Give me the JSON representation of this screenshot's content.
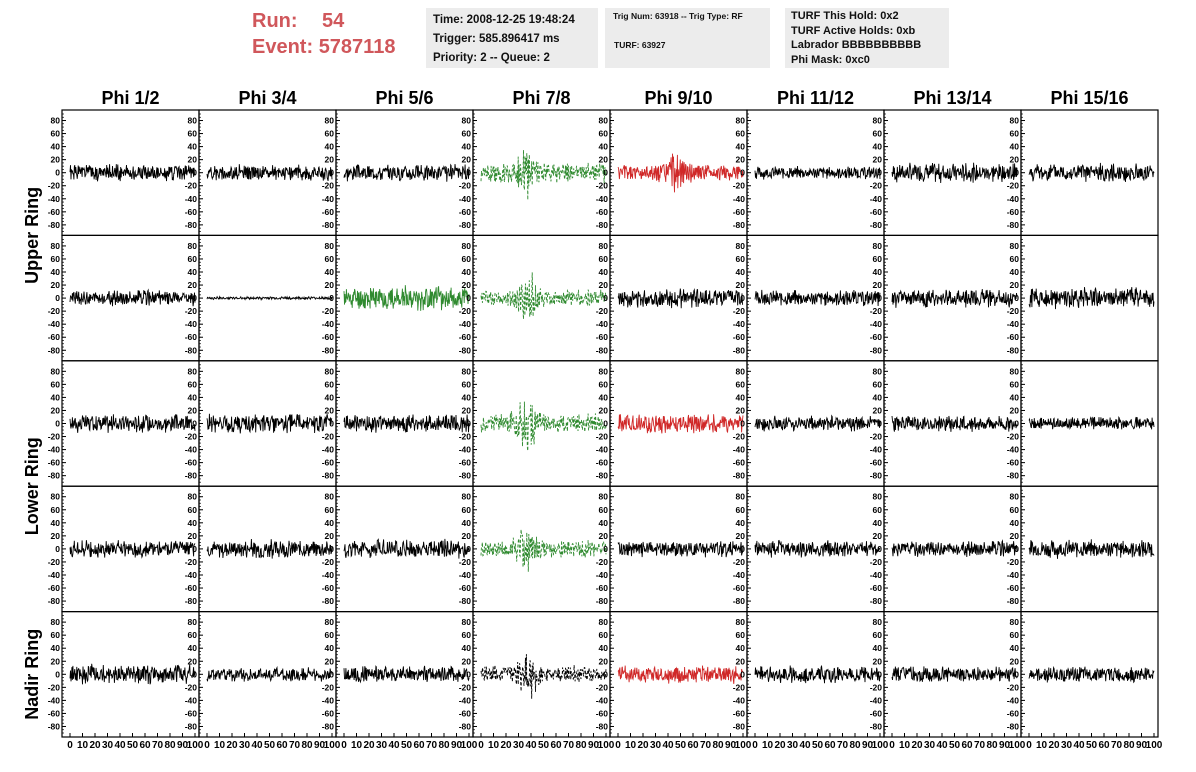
{
  "header": {
    "run_label": "Run:",
    "run_value": "54",
    "event_label": "Event:",
    "event_value": "5787118",
    "run_color": "#d0575b"
  },
  "info": {
    "time": "Time: 2008-12-25 19:48:24",
    "trigger": "Trigger: 585.896417 ms",
    "priority": "Priority: 2 -- Queue: 2",
    "trig_num": "Trig Num: 63918 -- Trig Type: RF",
    "turf": "TURF: 63927",
    "turf_hold": "TURF This Hold: 0x2",
    "turf_active": "TURF Active Holds: 0xb",
    "labrador": "Labrador BBBBBBBBBB",
    "phi_mask": "Phi Mask: 0xc0"
  },
  "columns": [
    "Phi 1/2",
    "Phi 3/4",
    "Phi 5/6",
    "Phi 7/8",
    "Phi 9/10",
    "Phi 11/12",
    "Phi 13/14",
    "Phi 15/16"
  ],
  "ring_groups": [
    {
      "label": "Upper Ring",
      "rows": [
        0,
        1
      ]
    },
    {
      "label": "Lower Ring",
      "rows": [
        2,
        3
      ]
    },
    {
      "label": "Nadir Ring",
      "rows": [
        4
      ]
    }
  ],
  "y_ticks": [
    80,
    60,
    40,
    20,
    0,
    -20,
    -40,
    -60,
    -80
  ],
  "y_tick_labels": [
    "80",
    "60",
    "40",
    "20",
    "0",
    "-20",
    "-40",
    "-60",
    "-80"
  ],
  "x_ticks": [
    0,
    10,
    20,
    30,
    40,
    50,
    60,
    70,
    80,
    90,
    100
  ],
  "x_tick_labels": [
    "0",
    "10",
    "20",
    "30",
    "40",
    "50",
    "60",
    "70",
    "80",
    "90",
    "100"
  ],
  "x_range": [
    0,
    100
  ],
  "y_range": [
    -90,
    90
  ],
  "colors": {
    "normal": "#000000",
    "triggered_green": "#2f8a2f",
    "triggered_red": "#d02828",
    "panel_border": "#000000"
  },
  "traces": [
    [
      {
        "color": "normal",
        "style": "solid",
        "amp": 12,
        "seed": 1
      },
      {
        "color": "normal",
        "style": "solid",
        "amp": 11,
        "seed": 2
      },
      {
        "color": "normal",
        "style": "solid",
        "amp": 12,
        "seed": 3
      },
      {
        "color": "triggered_green",
        "style": "dashed",
        "amp": 14,
        "seed": 4,
        "pulse": [
          36,
          26
        ]
      },
      {
        "color": "triggered_red",
        "style": "solid",
        "amp": 12,
        "seed": 5,
        "pulse": [
          45,
          18
        ]
      },
      {
        "color": "normal",
        "style": "solid",
        "amp": 9,
        "seed": 6
      },
      {
        "color": "normal",
        "style": "solid",
        "amp": 14,
        "seed": 7
      },
      {
        "color": "normal",
        "style": "solid",
        "amp": 13,
        "seed": 8
      }
    ],
    [
      {
        "color": "normal",
        "style": "solid",
        "amp": 11,
        "seed": 9
      },
      {
        "color": "normal",
        "style": "solid",
        "amp": 2,
        "seed": 10
      },
      {
        "color": "triggered_green",
        "style": "solid",
        "amp": 17,
        "seed": 11
      },
      {
        "color": "triggered_green",
        "style": "dashed",
        "amp": 12,
        "seed": 12,
        "pulse": [
          38,
          26
        ]
      },
      {
        "color": "normal",
        "style": "solid",
        "amp": 13,
        "seed": 13
      },
      {
        "color": "normal",
        "style": "solid",
        "amp": 11,
        "seed": 14
      },
      {
        "color": "normal",
        "style": "solid",
        "amp": 13,
        "seed": 15
      },
      {
        "color": "normal",
        "style": "solid",
        "amp": 15,
        "seed": 16
      }
    ],
    [
      {
        "color": "normal",
        "style": "solid",
        "amp": 13,
        "seed": 17
      },
      {
        "color": "normal",
        "style": "solid",
        "amp": 14,
        "seed": 18
      },
      {
        "color": "normal",
        "style": "solid",
        "amp": 13,
        "seed": 19
      },
      {
        "color": "triggered_green",
        "style": "dashed",
        "amp": 14,
        "seed": 20,
        "pulse": [
          36,
          28
        ]
      },
      {
        "color": "triggered_red",
        "style": "solid",
        "amp": 14,
        "seed": 21
      },
      {
        "color": "normal",
        "style": "solid",
        "amp": 11,
        "seed": 22
      },
      {
        "color": "normal",
        "style": "solid",
        "amp": 12,
        "seed": 23
      },
      {
        "color": "normal",
        "style": "solid",
        "amp": 9,
        "seed": 24
      }
    ],
    [
      {
        "color": "normal",
        "style": "solid",
        "amp": 12,
        "seed": 25
      },
      {
        "color": "normal",
        "style": "solid",
        "amp": 13,
        "seed": 26
      },
      {
        "color": "normal",
        "style": "solid",
        "amp": 13,
        "seed": 27
      },
      {
        "color": "triggered_green",
        "style": "dashed",
        "amp": 12,
        "seed": 28,
        "pulse": [
          36,
          28
        ]
      },
      {
        "color": "normal",
        "style": "solid",
        "amp": 11,
        "seed": 29
      },
      {
        "color": "normal",
        "style": "solid",
        "amp": 12,
        "seed": 30
      },
      {
        "color": "normal",
        "style": "solid",
        "amp": 11,
        "seed": 31
      },
      {
        "color": "normal",
        "style": "solid",
        "amp": 13,
        "seed": 32
      }
    ],
    [
      {
        "color": "normal",
        "style": "solid",
        "amp": 14,
        "seed": 33
      },
      {
        "color": "normal",
        "style": "solid",
        "amp": 10,
        "seed": 34
      },
      {
        "color": "normal",
        "style": "solid",
        "amp": 12,
        "seed": 35
      },
      {
        "color": "normal",
        "style": "dashed",
        "amp": 12,
        "seed": 36,
        "pulse": [
          38,
          26
        ]
      },
      {
        "color": "triggered_red",
        "style": "solid",
        "amp": 13,
        "seed": 37
      },
      {
        "color": "normal",
        "style": "solid",
        "amp": 12,
        "seed": 38
      },
      {
        "color": "normal",
        "style": "solid",
        "amp": 11,
        "seed": 39
      },
      {
        "color": "normal",
        "style": "solid",
        "amp": 11,
        "seed": 40
      }
    ]
  ]
}
